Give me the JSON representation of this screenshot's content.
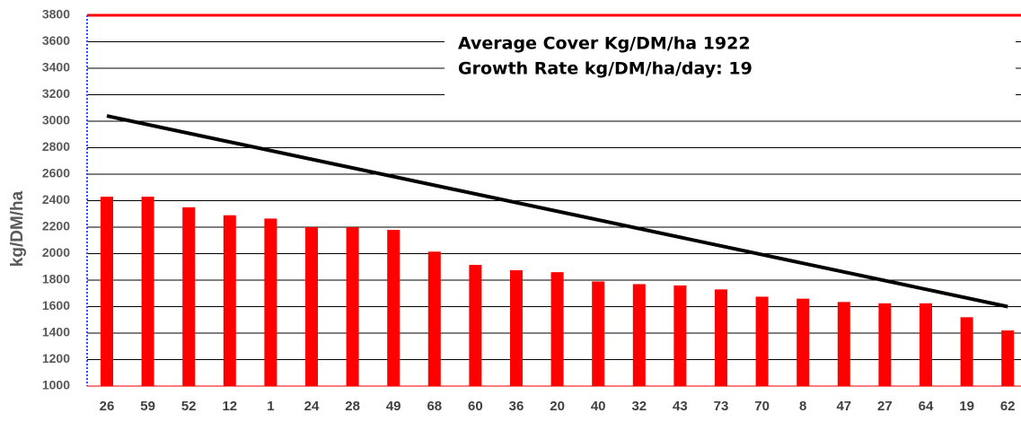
{
  "chart_data": {
    "type": "bar",
    "y_label": "kg/DM/ha",
    "annotations": [
      "Average Cover Kg/DM/ha 1922",
      "Growth Rate kg/DM/ha/day: 19"
    ],
    "categories": [
      "26",
      "59",
      "52",
      "12",
      "1",
      "24",
      "28",
      "49",
      "68",
      "60",
      "36",
      "20",
      "40",
      "32",
      "43",
      "73",
      "70",
      "8",
      "47",
      "27",
      "64",
      "19",
      "62"
    ],
    "values": [
      2430,
      2430,
      2350,
      2290,
      2265,
      2200,
      2200,
      2180,
      2015,
      1915,
      1875,
      1860,
      1790,
      1770,
      1760,
      1730,
      1675,
      1660,
      1635,
      1625,
      1625,
      1520,
      1420
    ],
    "color": "#ff0000",
    "trend": {
      "values": [
        3040,
        1600
      ],
      "color": "#000000"
    },
    "ylim": [
      1000,
      3800
    ],
    "yticks": [
      1000,
      1200,
      1400,
      1600,
      1800,
      2000,
      2200,
      2400,
      2600,
      2800,
      3000,
      3200,
      3400,
      3600,
      3800
    ],
    "grid": true
  }
}
